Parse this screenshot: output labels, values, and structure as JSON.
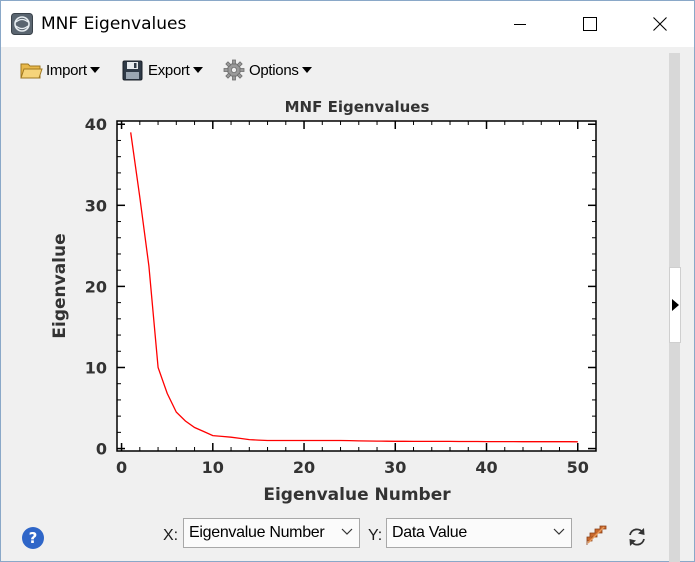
{
  "window": {
    "title": "MNF Eigenvalues",
    "icon": "envi-app-icon",
    "controls": [
      "minimize-icon",
      "maximize-icon",
      "close-icon"
    ]
  },
  "toolbar": {
    "import_label": "Import",
    "export_label": "Export",
    "options_label": "Options",
    "import_icon": "folder-open-icon",
    "export_icon": "floppy-disk-icon",
    "options_icon": "gear-icon"
  },
  "chart_data": {
    "type": "line",
    "title": "MNF Eigenvalues",
    "xlabel": "Eigenvalue Number",
    "ylabel": "Eigenvalue",
    "xlim": [
      -0.5,
      52
    ],
    "ylim": [
      -0.3,
      40.4
    ],
    "xticks": [
      0,
      10,
      20,
      30,
      40,
      50
    ],
    "yticks": [
      0,
      10,
      20,
      30,
      40
    ],
    "grid": false,
    "series": [
      {
        "color": "#ff0000",
        "x": [
          1,
          2,
          3,
          4,
          5,
          6,
          7,
          8,
          9,
          10,
          11,
          12,
          13,
          14,
          15,
          16,
          17,
          18,
          19,
          20,
          21,
          22,
          23,
          24,
          25,
          26,
          27,
          28,
          29,
          30,
          31,
          32,
          33,
          34,
          35,
          36,
          37,
          38,
          39,
          40,
          41,
          42,
          43,
          44,
          45,
          46,
          47,
          48,
          49,
          50
        ],
        "y": [
          39,
          31,
          22.5,
          10,
          6.8,
          4.5,
          3.4,
          2.6,
          2.1,
          1.6,
          1.5,
          1.4,
          1.25,
          1.1,
          1.05,
          1.0,
          1.0,
          1.0,
          1.0,
          1.0,
          1.0,
          1.0,
          1.0,
          1.0,
          0.98,
          0.95,
          0.93,
          0.92,
          0.91,
          0.9,
          0.9,
          0.89,
          0.89,
          0.88,
          0.88,
          0.88,
          0.87,
          0.87,
          0.87,
          0.86,
          0.86,
          0.86,
          0.86,
          0.85,
          0.85,
          0.85,
          0.85,
          0.85,
          0.85,
          0.84
        ]
      }
    ]
  },
  "footer": {
    "x_label": "X:",
    "y_label": "Y:",
    "x_select_value": "Eigenvalue Number",
    "y_select_value": "Data Value",
    "help_icon": "help-icon",
    "help_glyph": "?",
    "stairs_icon": "stairs-icon",
    "refresh_icon": "refresh-icon"
  }
}
